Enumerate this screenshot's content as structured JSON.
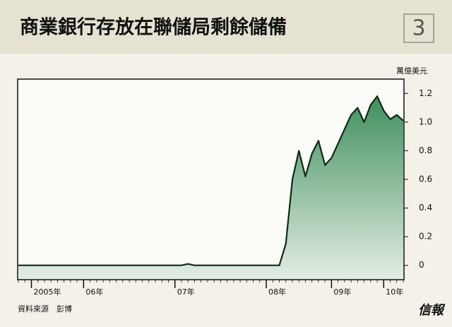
{
  "chart_data": {
    "type": "area",
    "title": "商業銀行存放在聯儲局剩餘儲備",
    "badge": "3",
    "y_unit": "萬億美元",
    "source": "資料來源　彭博",
    "logo": "信報",
    "color": "#4e9a69",
    "line_color": "#0d2b17",
    "categories": [
      null,
      null,
      "2005年",
      null,
      null,
      null,
      null,
      null,
      null,
      null,
      "06年",
      null,
      null,
      null,
      null,
      null,
      null,
      null,
      null,
      null,
      null,
      null,
      null,
      null,
      "07年",
      null,
      null,
      null,
      null,
      null,
      null,
      null,
      null,
      null,
      null,
      null,
      null,
      null,
      "08年",
      null,
      null,
      null,
      null,
      null,
      null,
      null,
      null,
      null,
      "09年",
      null,
      null,
      null,
      null,
      null,
      null,
      null,
      "10年",
      null,
      null,
      null
    ],
    "values": [
      0,
      0,
      0,
      0,
      0,
      0,
      0,
      0,
      0,
      0,
      0,
      0,
      0,
      0,
      0,
      0,
      0,
      0,
      0,
      0,
      0,
      0,
      0,
      0,
      0,
      0,
      0.01,
      0,
      0,
      0,
      0,
      0,
      0,
      0,
      0,
      0,
      0,
      0,
      0,
      0,
      0,
      0.15,
      0.6,
      0.8,
      0.62,
      0.78,
      0.87,
      0.7,
      0.75,
      0.85,
      0.95,
      1.05,
      1.1,
      1.0,
      1.12,
      1.18,
      1.08,
      1.02,
      1.05,
      1.01
    ],
    "ylim": [
      -0.1,
      1.3
    ],
    "yticks": [
      0,
      0.2,
      0.4,
      0.6,
      0.8,
      {
        "value": 1,
        "label": "1.0"
      },
      1.2
    ]
  }
}
